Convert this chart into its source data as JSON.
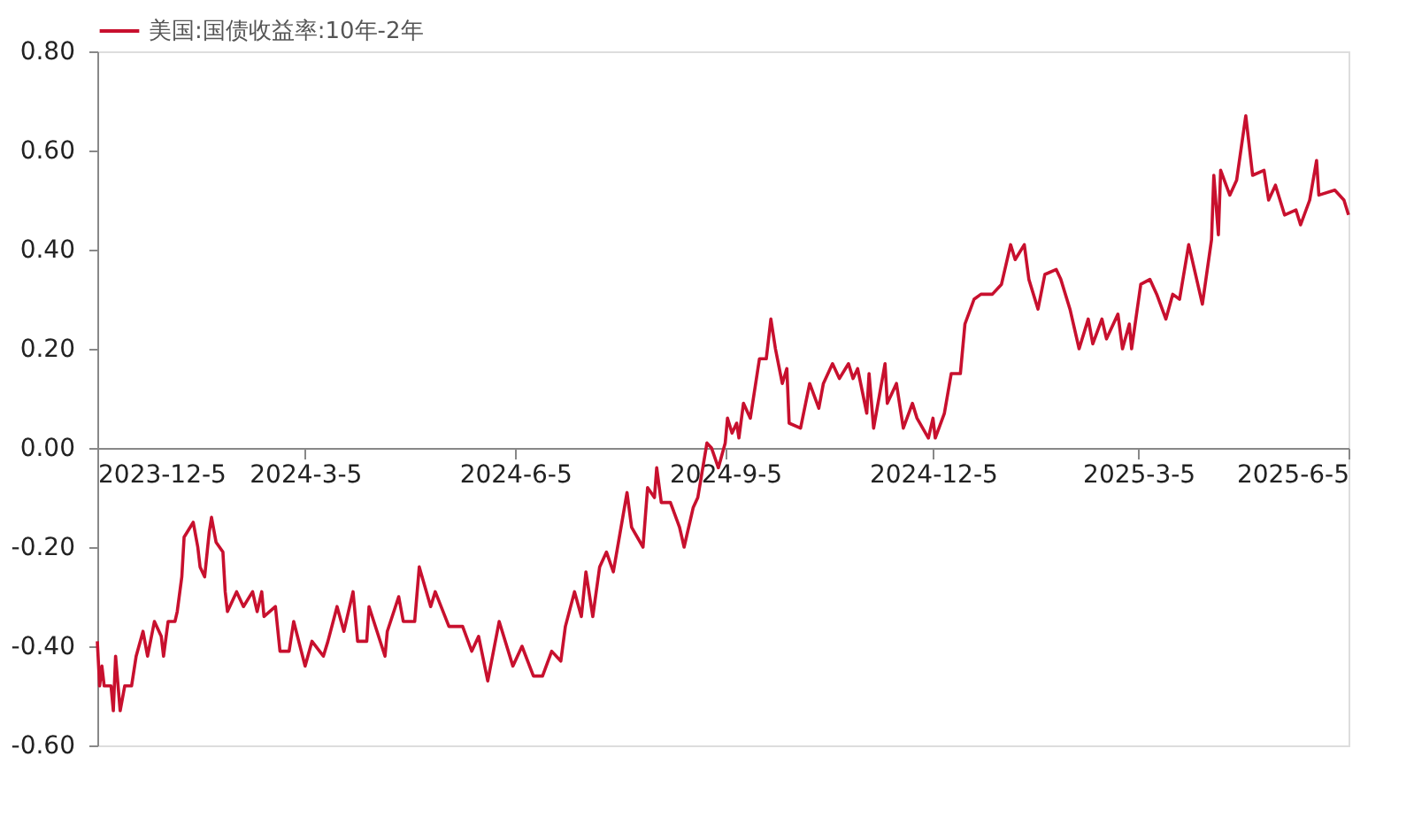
{
  "chart_data": {
    "type": "line",
    "legend": "top",
    "grid": false,
    "xlim": [
      "2023-12-05",
      "2025-06-05"
    ],
    "xticks": [
      {
        "value": "2023-12-05",
        "label": "2023-12-5"
      },
      {
        "value": "2024-03-05",
        "label": "2024-3-5"
      },
      {
        "value": "2024-06-05",
        "label": "2024-6-5"
      },
      {
        "value": "2024-09-05",
        "label": "2024-9-5"
      },
      {
        "value": "2024-12-05",
        "label": "2024-12-5"
      },
      {
        "value": "2025-03-05",
        "label": "2025-3-5"
      },
      {
        "value": "2025-06-05",
        "label": "2025-6-5"
      }
    ],
    "ylim": [
      -0.6,
      0.8
    ],
    "yticks": [
      {
        "value": -0.6,
        "label": "-0.60"
      },
      {
        "value": -0.4,
        "label": "-0.40"
      },
      {
        "value": -0.2,
        "label": "-0.20"
      },
      {
        "value": 0,
        "label": "0.00"
      },
      {
        "value": 0.2,
        "label": "0.20"
      },
      {
        "value": 0.4,
        "label": "0.40"
      },
      {
        "value": 0.6,
        "label": "0.60"
      },
      {
        "value": 0.8,
        "label": "0.80"
      }
    ],
    "x": [
      "2023-12-05",
      "2023-12-06",
      "2023-12-07",
      "2023-12-08",
      "2023-12-11",
      "2023-12-12",
      "2023-12-13",
      "2023-12-15",
      "2023-12-17",
      "2023-12-20",
      "2023-12-22",
      "2023-12-25",
      "2023-12-27",
      "2023-12-30",
      "2024-01-02",
      "2024-01-03",
      "2024-01-05",
      "2024-01-08",
      "2024-01-09",
      "2024-01-11",
      "2024-01-12",
      "2024-01-16",
      "2024-01-18",
      "2024-01-19",
      "2024-01-21",
      "2024-01-23",
      "2024-01-24",
      "2024-01-26",
      "2024-01-29",
      "2024-01-30",
      "2024-01-31",
      "2024-02-04",
      "2024-02-07",
      "2024-02-11",
      "2024-02-13",
      "2024-02-15",
      "2024-02-16",
      "2024-02-21",
      "2024-02-23",
      "2024-02-27",
      "2024-02-29",
      "2024-03-05",
      "2024-03-08",
      "2024-03-13",
      "2024-03-15",
      "2024-03-19",
      "2024-03-22",
      "2024-03-26",
      "2024-03-28",
      "2024-04-01",
      "2024-04-02",
      "2024-04-09",
      "2024-04-10",
      "2024-04-15",
      "2024-04-17",
      "2024-04-22",
      "2024-04-24",
      "2024-04-29",
      "2024-05-01",
      "2024-05-07",
      "2024-05-13",
      "2024-05-17",
      "2024-05-20",
      "2024-05-24",
      "2024-05-29",
      "2024-06-04",
      "2024-06-08",
      "2024-06-13",
      "2024-06-17",
      "2024-06-21",
      "2024-06-25",
      "2024-06-27",
      "2024-07-01",
      "2024-07-04",
      "2024-07-06",
      "2024-07-09",
      "2024-07-12",
      "2024-07-15",
      "2024-07-18",
      "2024-07-24",
      "2024-07-26",
      "2024-07-31",
      "2024-08-02",
      "2024-08-05",
      "2024-08-06",
      "2024-08-08",
      "2024-08-12",
      "2024-08-16",
      "2024-08-18",
      "2024-08-22",
      "2024-08-24",
      "2024-08-28",
      "2024-08-30",
      "2024-09-02",
      "2024-09-05",
      "2024-09-06",
      "2024-09-08",
      "2024-09-10",
      "2024-09-11",
      "2024-09-13",
      "2024-09-16",
      "2024-09-20",
      "2024-09-23",
      "2024-09-25",
      "2024-09-27",
      "2024-09-30",
      "2024-10-02",
      "2024-10-03",
      "2024-10-08",
      "2024-10-12",
      "2024-10-16",
      "2024-10-18",
      "2024-10-22",
      "2024-10-25",
      "2024-10-29",
      "2024-10-31",
      "2024-11-02",
      "2024-11-06",
      "2024-11-07",
      "2024-11-09",
      "2024-11-14",
      "2024-11-15",
      "2024-11-19",
      "2024-11-22",
      "2024-11-26",
      "2024-11-28",
      "2024-12-03",
      "2024-12-05",
      "2024-12-06",
      "2024-12-10",
      "2024-12-13",
      "2024-12-17",
      "2024-12-19",
      "2024-12-23",
      "2024-12-26",
      "2024-12-31",
      "2025-01-04",
      "2025-01-08",
      "2025-01-10",
      "2025-01-14",
      "2025-01-16",
      "2025-01-20",
      "2025-01-23",
      "2025-01-28",
      "2025-01-30",
      "2025-02-03",
      "2025-02-07",
      "2025-02-11",
      "2025-02-13",
      "2025-02-17",
      "2025-02-19",
      "2025-02-24",
      "2025-02-26",
      "2025-03-01",
      "2025-03-02",
      "2025-03-06",
      "2025-03-10",
      "2025-03-13",
      "2025-03-17",
      "2025-03-20",
      "2025-03-23",
      "2025-03-27",
      "2025-04-02",
      "2025-04-06",
      "2025-04-07",
      "2025-04-09",
      "2025-04-10",
      "2025-04-14",
      "2025-04-17",
      "2025-04-21",
      "2025-04-24",
      "2025-04-29",
      "2025-05-01",
      "2025-05-04",
      "2025-05-08",
      "2025-05-13",
      "2025-05-15",
      "2025-05-19",
      "2025-05-22",
      "2025-05-23",
      "2025-05-30",
      "2025-06-03",
      "2025-06-05"
    ],
    "series": [
      {
        "name": "美国:国债收益率:10年-2年",
        "color": "#c8102e",
        "values": [
          -0.39,
          -0.48,
          -0.44,
          -0.48,
          -0.48,
          -0.53,
          -0.42,
          -0.53,
          -0.48,
          -0.48,
          -0.42,
          -0.37,
          -0.42,
          -0.35,
          -0.38,
          -0.42,
          -0.35,
          -0.35,
          -0.33,
          -0.26,
          -0.18,
          -0.15,
          -0.2,
          -0.24,
          -0.26,
          -0.17,
          -0.14,
          -0.19,
          -0.21,
          -0.29,
          -0.33,
          -0.29,
          -0.32,
          -0.29,
          -0.33,
          -0.29,
          -0.34,
          -0.32,
          -0.41,
          -0.41,
          -0.35,
          -0.44,
          -0.39,
          -0.42,
          -0.39,
          -0.32,
          -0.37,
          -0.29,
          -0.39,
          -0.39,
          -0.32,
          -0.42,
          -0.37,
          -0.3,
          -0.35,
          -0.35,
          -0.24,
          -0.32,
          -0.29,
          -0.36,
          -0.36,
          -0.41,
          -0.38,
          -0.47,
          -0.35,
          -0.44,
          -0.4,
          -0.46,
          -0.46,
          -0.41,
          -0.43,
          -0.36,
          -0.29,
          -0.34,
          -0.25,
          -0.34,
          -0.24,
          -0.21,
          -0.25,
          -0.09,
          -0.16,
          -0.2,
          -0.08,
          -0.1,
          -0.04,
          -0.11,
          -0.11,
          -0.16,
          -0.2,
          -0.12,
          -0.1,
          0.01,
          0.0,
          -0.04,
          0.01,
          0.06,
          0.03,
          0.05,
          0.02,
          0.09,
          0.06,
          0.18,
          0.18,
          0.26,
          0.2,
          0.13,
          0.16,
          0.05,
          0.04,
          0.13,
          0.08,
          0.13,
          0.17,
          0.14,
          0.17,
          0.14,
          0.16,
          0.07,
          0.15,
          0.04,
          0.17,
          0.09,
          0.13,
          0.04,
          0.09,
          0.06,
          0.02,
          0.06,
          0.02,
          0.07,
          0.15,
          0.15,
          0.25,
          0.3,
          0.31,
          0.31,
          0.33,
          0.41,
          0.38,
          0.41,
          0.34,
          0.28,
          0.35,
          0.36,
          0.34,
          0.28,
          0.2,
          0.26,
          0.21,
          0.26,
          0.22,
          0.27,
          0.2,
          0.25,
          0.2,
          0.33,
          0.34,
          0.31,
          0.26,
          0.31,
          0.3,
          0.41,
          0.29,
          0.42,
          0.55,
          0.43,
          0.56,
          0.51,
          0.54,
          0.67,
          0.55,
          0.56,
          0.5,
          0.53,
          0.47,
          0.48,
          0.45,
          0.5,
          0.58,
          0.51,
          0.52,
          0.5,
          0.47
        ]
      }
    ]
  }
}
